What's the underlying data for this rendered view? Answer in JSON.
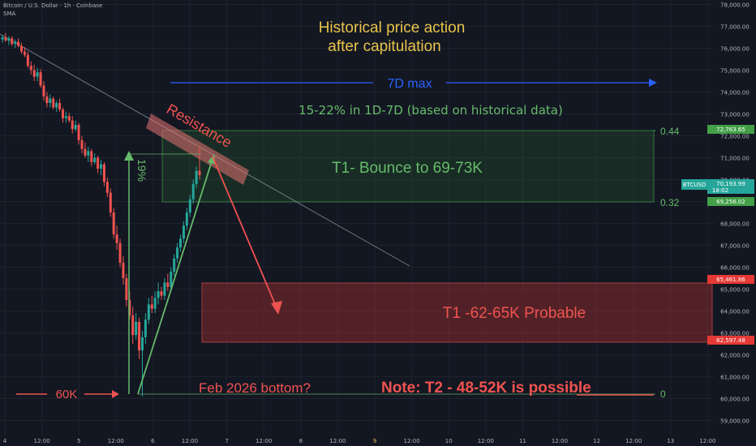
{
  "header": {
    "symbol_line": "Bitcoin / U.S. Dollar · 1h · Coinbase",
    "indicator": "SMA"
  },
  "colors": {
    "background": "#131722",
    "grid": "#1e222d",
    "bull": "#26a69a",
    "bear": "#ef5350",
    "title_yellow": "#e8c34a",
    "green_text": "#66bb6a",
    "red_text": "#ef5350",
    "blue": "#2962ff",
    "axis_text": "#b2b5be"
  },
  "annotations": {
    "title_line1": "Historical price action",
    "title_line2": "after capitulation",
    "max_label": "7D max",
    "range_text": "15-22% in 1D-7D (based on historical data)",
    "resistance": "Resistance",
    "green_zone": "T1- Bounce to 69-73K",
    "red_zone": "T1 -62-65K Probable",
    "pct_label": "19%",
    "level_60k": "60K",
    "bottom_q": "Feb 2026 bottom?",
    "note_prefix": "Note: T2 - 48-52K is ",
    "note_underlined": "possible",
    "fib_044": "0.44",
    "fib_032": "0.32",
    "fib_0": "0"
  },
  "chart_data": {
    "type": "candlestick",
    "y_axis": {
      "min": 58500,
      "max": 78500,
      "ticks": [
        "78,000.00",
        "77,000.00",
        "76,000.00",
        "75,000.00",
        "74,000.00",
        "73,000.00",
        "72,000.00",
        "71,000.00",
        "70,000.00",
        "69,000.00",
        "68,000.00",
        "67,000.00",
        "66,000.00",
        "65,000.00",
        "64,000.00",
        "63,000.00",
        "62,000.00",
        "61,000.00",
        "60,000.00",
        "59,000.00"
      ]
    },
    "x_axis": {
      "ticks": [
        "4",
        "12:00",
        "5",
        "12:00",
        "6",
        "12:00",
        "7",
        "12:00",
        "8",
        "12:00",
        "9",
        "12:00",
        "10",
        "12:00",
        "11",
        "12:00",
        "12",
        "12:00",
        "13",
        "12:00"
      ]
    },
    "price_labels": {
      "upper": "72,763.65",
      "current_symbol": "BTCUSD",
      "current_price": "70,193.99",
      "current_time": "18:02",
      "lower_green": "69,256.02",
      "red_upper": "65,461.86",
      "red_lower": "62,597.48"
    },
    "candles": [
      [
        76400,
        76600,
        76250,
        76500
      ],
      [
        76500,
        76700,
        76300,
        76350
      ],
      [
        76350,
        76550,
        76150,
        76450
      ],
      [
        76450,
        76550,
        76100,
        76200
      ],
      [
        76200,
        76400,
        76000,
        76300
      ],
      [
        76300,
        76450,
        76050,
        76100
      ],
      [
        76100,
        76250,
        75750,
        75850
      ],
      [
        75850,
        76050,
        75600,
        75700
      ],
      [
        75700,
        75850,
        75100,
        75200
      ],
      [
        75200,
        75400,
        74800,
        75000
      ],
      [
        75000,
        75250,
        74500,
        74700
      ],
      [
        74700,
        75100,
        74500,
        74900
      ],
      [
        74900,
        75050,
        74200,
        74300
      ],
      [
        74300,
        74500,
        73600,
        73800
      ],
      [
        73800,
        74000,
        73300,
        73500
      ],
      [
        73500,
        73900,
        73300,
        73700
      ],
      [
        73700,
        73800,
        73200,
        73300
      ],
      [
        73300,
        73600,
        73100,
        73500
      ],
      [
        73500,
        73700,
        73100,
        73200
      ],
      [
        73200,
        73300,
        72600,
        72800
      ],
      [
        72800,
        73100,
        72600,
        72900
      ],
      [
        72900,
        73050,
        72600,
        72700
      ],
      [
        72700,
        72900,
        72100,
        72300
      ],
      [
        72300,
        72700,
        72200,
        72500
      ],
      [
        72500,
        72600,
        71600,
        71800
      ],
      [
        71800,
        72000,
        71200,
        71400
      ],
      [
        71400,
        71700,
        71000,
        71100
      ],
      [
        71100,
        71500,
        70800,
        71300
      ],
      [
        71300,
        71400,
        70600,
        70800
      ],
      [
        70800,
        71200,
        70700,
        71000
      ],
      [
        71000,
        71100,
        70300,
        70500
      ],
      [
        70500,
        70900,
        70200,
        70700
      ],
      [
        70700,
        70800,
        69700,
        69900
      ],
      [
        69900,
        70100,
        69200,
        69400
      ],
      [
        69400,
        69600,
        68300,
        68500
      ],
      [
        68500,
        68700,
        67300,
        67500
      ],
      [
        67500,
        67900,
        66800,
        67100
      ],
      [
        67100,
        67300,
        66000,
        66200
      ],
      [
        66200,
        66500,
        65200,
        65500
      ],
      [
        65500,
        65700,
        64200,
        64500
      ],
      [
        64500,
        64900,
        63600,
        63800
      ],
      [
        63800,
        64200,
        62500,
        62900
      ],
      [
        62900,
        63900,
        62700,
        63500
      ],
      [
        63500,
        63700,
        61800,
        62200
      ],
      [
        62200,
        63100,
        60100,
        62800
      ],
      [
        62800,
        63900,
        62500,
        63600
      ],
      [
        63600,
        64600,
        63400,
        64300
      ],
      [
        64300,
        64700,
        63900,
        64100
      ],
      [
        64100,
        64900,
        63900,
        64600
      ],
      [
        64600,
        65300,
        64300,
        64900
      ],
      [
        64900,
        65100,
        64500,
        64700
      ],
      [
        64700,
        65500,
        64500,
        65300
      ],
      [
        65300,
        65700,
        64900,
        65100
      ],
      [
        65100,
        66000,
        64900,
        65800
      ],
      [
        65800,
        66600,
        65600,
        66400
      ],
      [
        66400,
        67100,
        66200,
        66900
      ],
      [
        66900,
        67500,
        66700,
        67300
      ],
      [
        67300,
        68100,
        67100,
        67900
      ],
      [
        67900,
        68700,
        67700,
        68500
      ],
      [
        68500,
        69300,
        68300,
        69100
      ],
      [
        69100,
        70000,
        68900,
        69800
      ],
      [
        69800,
        70600,
        69600,
        70400
      ],
      [
        70400,
        71500,
        70000,
        70200
      ]
    ]
  }
}
